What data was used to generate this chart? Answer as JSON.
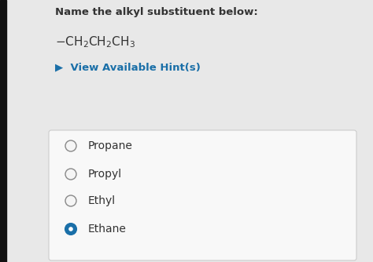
{
  "bg_color": "#e8e8e8",
  "card_color": "#f5f5f5",
  "question": "Name the alkyl substituent below:",
  "hint_text": "▶  View Available Hint(s)",
  "hint_color": "#1a6fa8",
  "options": [
    "Propane",
    "Propyl",
    "Ethyl",
    "Ethane"
  ],
  "selected_index": 3,
  "selected_color": "#1a6fa8",
  "unselected_color": "#f5f5f5",
  "circle_edge_color": "#888888",
  "selected_edge_color": "#1a6fa8",
  "text_color": "#333333",
  "left_strip_color": "#111111",
  "card_border_color": "#cccccc",
  "question_fontsize": 9.5,
  "formula_fontsize": 11,
  "hint_fontsize": 9.5,
  "option_fontsize": 10
}
